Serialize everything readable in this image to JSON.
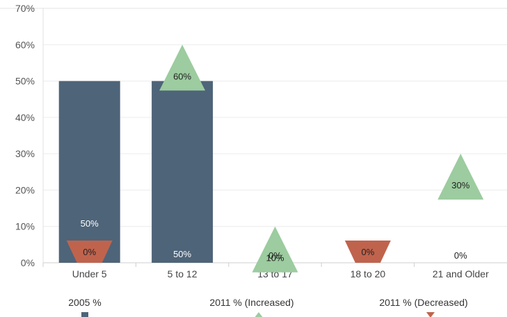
{
  "chart_data": {
    "type": "bar",
    "title": "",
    "xlabel": "",
    "ylabel": "",
    "ylim": [
      0,
      70
    ],
    "yticks": [
      "0%",
      "10%",
      "20%",
      "30%",
      "40%",
      "50%",
      "60%",
      "70%"
    ],
    "grid": true,
    "legend_position": "bottom",
    "categories": [
      "Under 5",
      "5 to 12",
      "13 to 17",
      "18 to 20",
      "21 and Older"
    ],
    "series": [
      {
        "name": "2005 %",
        "mark": "bar",
        "color": "#4e6479",
        "values": [
          50,
          50,
          null,
          null,
          null
        ],
        "labels": [
          "50%",
          "50%",
          "",
          "",
          ""
        ]
      },
      {
        "name": "2011 % (Increased)",
        "mark": "triangle-up",
        "color": "#9ccc9f",
        "values": [
          null,
          60,
          10,
          null,
          30
        ],
        "labels": [
          "",
          "60%",
          "10%",
          "",
          "30%"
        ]
      },
      {
        "name": "2011 % (Decreased)",
        "mark": "triangle-down",
        "color": "#c0634d",
        "values": [
          0,
          null,
          null,
          0,
          null
        ],
        "labels": [
          "0%",
          "",
          "",
          "0%",
          ""
        ]
      }
    ],
    "zero_labels": [
      {
        "category": "13 to 17",
        "text": "0%"
      },
      {
        "category": "21 and Older",
        "text": "0%"
      }
    ]
  }
}
